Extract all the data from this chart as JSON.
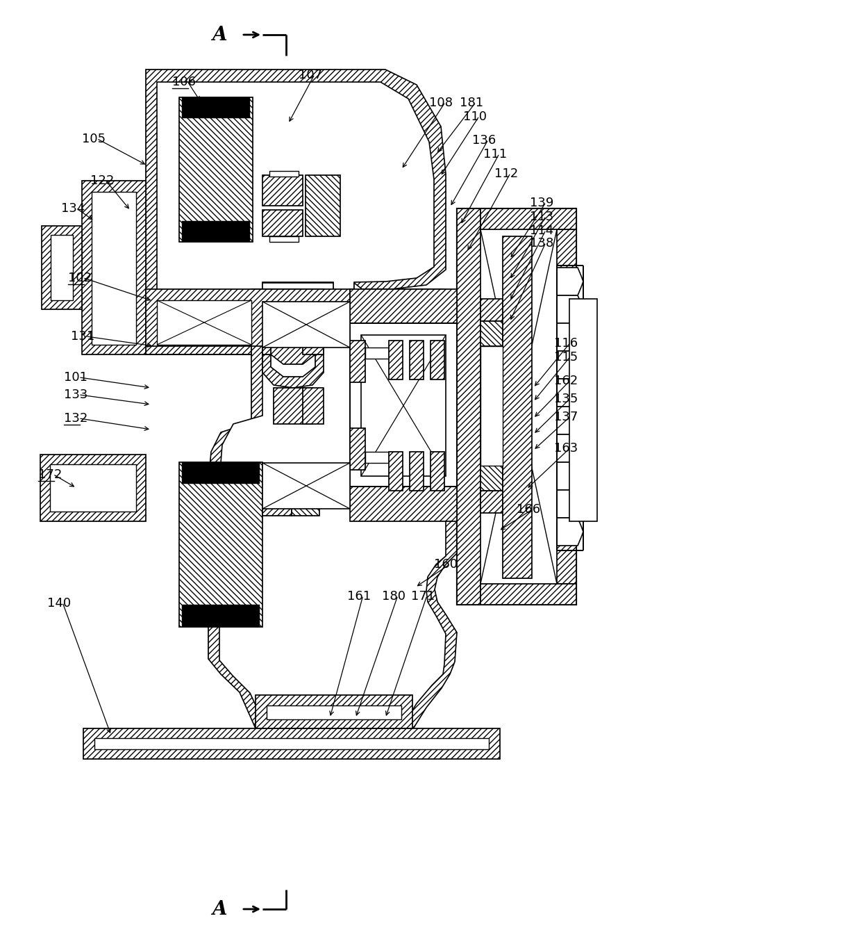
{
  "figsize": [
    12.4,
    13.51
  ],
  "dpi": 100,
  "bg": "#ffffff",
  "labels_left": [
    [
      "106",
      270,
      118,
      295,
      145,
      true
    ],
    [
      "105",
      118,
      200,
      200,
      238,
      false
    ],
    [
      "122",
      130,
      260,
      185,
      302,
      false
    ],
    [
      "134",
      88,
      300,
      138,
      318,
      false
    ],
    [
      "102",
      98,
      400,
      210,
      430,
      true
    ],
    [
      "131",
      102,
      484,
      210,
      497,
      false
    ],
    [
      "101",
      92,
      543,
      212,
      558,
      false
    ],
    [
      "133",
      92,
      568,
      212,
      582,
      false
    ],
    [
      "132",
      92,
      602,
      212,
      618,
      true
    ],
    [
      "172",
      55,
      683,
      110,
      700,
      true
    ],
    [
      "140",
      68,
      868,
      160,
      1048,
      false
    ]
  ],
  "labels_right": [
    [
      "107",
      430,
      108,
      410,
      175,
      false
    ],
    [
      "108",
      615,
      148,
      572,
      240,
      false
    ],
    [
      "181",
      660,
      148,
      626,
      218,
      false
    ],
    [
      "110",
      665,
      168,
      632,
      250,
      false
    ],
    [
      "136",
      677,
      202,
      645,
      295,
      false
    ],
    [
      "111",
      693,
      222,
      660,
      320,
      false
    ],
    [
      "112",
      710,
      250,
      668,
      360,
      false
    ],
    [
      "139",
      760,
      292,
      730,
      370,
      false
    ],
    [
      "113",
      760,
      312,
      730,
      400,
      false
    ],
    [
      "114",
      760,
      332,
      730,
      430,
      false
    ],
    [
      "138",
      760,
      350,
      730,
      460,
      false
    ],
    [
      "116",
      795,
      494,
      765,
      558,
      false
    ],
    [
      "115",
      795,
      514,
      765,
      578,
      false
    ],
    [
      "162",
      795,
      548,
      765,
      600,
      false
    ],
    [
      "135",
      795,
      574,
      765,
      623,
      false
    ],
    [
      "137",
      795,
      600,
      765,
      646,
      false
    ],
    [
      "163",
      795,
      645,
      755,
      702,
      false
    ],
    [
      "166",
      742,
      733,
      715,
      762,
      false
    ],
    [
      "160",
      624,
      812,
      596,
      843,
      false
    ],
    [
      "161",
      498,
      858,
      472,
      1030,
      false
    ],
    [
      "180",
      548,
      858,
      510,
      1030,
      false
    ],
    [
      "171",
      590,
      858,
      552,
      1030,
      false
    ]
  ]
}
